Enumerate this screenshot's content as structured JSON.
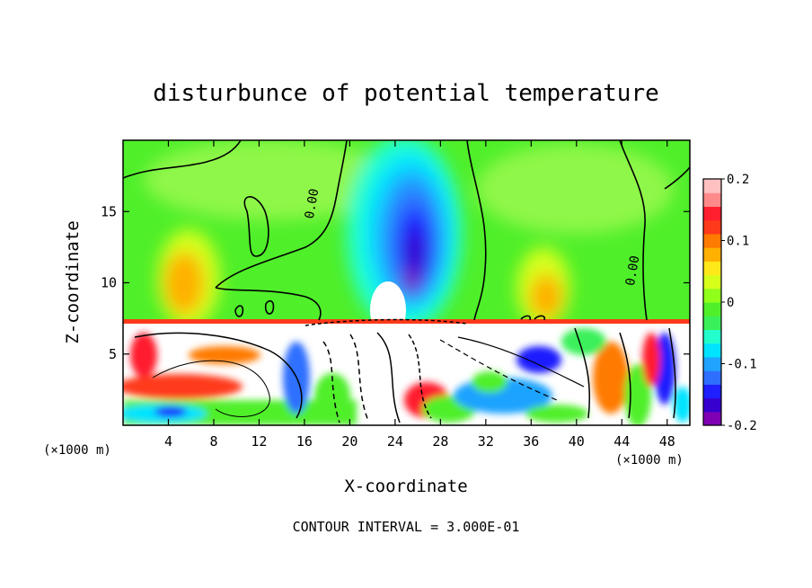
{
  "chart_data": {
    "type": "heatmap",
    "title": "disturbunce of potential temperature",
    "xlabel": "X-coordinate",
    "ylabel": "Z-coordinate",
    "x_unit": "(×1000 m)",
    "z_unit": "(×1000 m)",
    "xlim": [
      0,
      50
    ],
    "ylim": [
      0,
      20
    ],
    "xticks": [
      4,
      8,
      12,
      16,
      20,
      24,
      28,
      32,
      36,
      40,
      44,
      48
    ],
    "yticks": [
      5,
      10,
      15
    ],
    "contour_interval_text": "CONTOUR INTERVAL = 3.000E-01",
    "contour_labels": [
      {
        "text": "0.00",
        "x": 17.0,
        "z": 15.5
      },
      {
        "text": "0.00",
        "x": 45.3,
        "z": 10.8
      }
    ],
    "colorbar": {
      "min": -0.2,
      "max": 0.2,
      "tick_labels": [
        "0.2",
        "0.1",
        "0",
        "-0.1",
        "-0.2"
      ],
      "tick_values": [
        0.2,
        0.1,
        0,
        -0.1,
        -0.2
      ],
      "colors": [
        "#7f00b2",
        "#3700cf",
        "#1f1fff",
        "#2f6fff",
        "#1fa3ff",
        "#00e3ff",
        "#22ffcc",
        "#3af05a",
        "#4fef2a",
        "#90ff1a",
        "#d6ff1a",
        "#ffe81a",
        "#ffb000",
        "#ff7a00",
        "#ff3a1a",
        "#ff1f2f",
        "#ff8a8a",
        "#ffc0c0"
      ]
    },
    "features": [
      {
        "name": "cold anomaly plume",
        "x": 24,
        "z": 11,
        "value": -0.2
      },
      {
        "name": "warm anomaly left",
        "x": 7,
        "z": 10,
        "value": 0.13
      },
      {
        "name": "warm anomaly right",
        "x": 38,
        "z": 9,
        "value": 0.12
      },
      {
        "name": "neutral background",
        "value": 0.0
      }
    ]
  }
}
